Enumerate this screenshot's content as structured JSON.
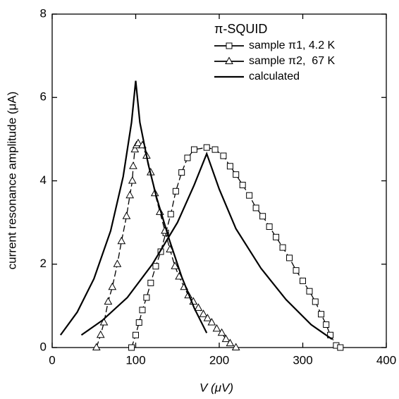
{
  "chart_data": {
    "type": "line",
    "legend_title": "π-SQUID",
    "x_label": "V (μV)",
    "y_label": "current resonance amplitude (μA)",
    "xlim": [
      0,
      400
    ],
    "xticks": [
      0,
      100,
      200,
      300,
      400
    ],
    "ylim": [
      0,
      8
    ],
    "yticks": [
      0,
      2,
      4,
      6,
      8
    ],
    "legend": "upper right",
    "series": [
      {
        "name": "sample π1, 4.2 K",
        "color": "#000000",
        "marker": "square",
        "x": [
          95,
          100,
          104,
          108,
          113,
          118,
          124,
          130,
          136,
          142,
          148,
          155,
          162,
          170,
          185,
          195,
          205,
          213,
          220,
          228,
          236,
          244,
          252,
          260,
          268,
          276,
          284,
          292,
          300,
          308,
          315,
          322,
          328,
          333,
          340,
          345
        ],
        "values": [
          0,
          0.3,
          0.6,
          0.9,
          1.2,
          1.55,
          1.95,
          2.3,
          2.75,
          3.2,
          3.75,
          4.2,
          4.55,
          4.75,
          4.8,
          4.75,
          4.6,
          4.35,
          4.15,
          3.9,
          3.65,
          3.35,
          3.15,
          2.9,
          2.65,
          2.4,
          2.15,
          1.85,
          1.6,
          1.35,
          1.1,
          0.8,
          0.55,
          0.3,
          0.05,
          0
        ]
      },
      {
        "name": "sample π2,  67 K",
        "color": "#000000",
        "marker": "triangle",
        "x": [
          53,
          58,
          62,
          67,
          72,
          78,
          83,
          89,
          93,
          96,
          97,
          99,
          101,
          103,
          108,
          113,
          118,
          123,
          129,
          135,
          141,
          147,
          152,
          158,
          163,
          169,
          175,
          181,
          186,
          191,
          197,
          203,
          208,
          213,
          220
        ],
        "values": [
          0,
          0.3,
          0.6,
          1.1,
          1.45,
          2.0,
          2.55,
          3.15,
          3.65,
          4.0,
          4.35,
          4.75,
          4.85,
          4.9,
          4.85,
          4.6,
          4.2,
          3.7,
          3.25,
          2.8,
          2.35,
          1.95,
          1.7,
          1.45,
          1.25,
          1.1,
          0.95,
          0.8,
          0.7,
          0.6,
          0.45,
          0.35,
          0.2,
          0.1,
          0
        ]
      },
      {
        "name": "calculated",
        "color": "#000000",
        "marker": "none",
        "x": [
          10,
          30,
          50,
          70,
          85,
          95,
          100,
          105,
          115,
          125,
          140,
          155,
          170,
          185,
          null,
          35,
          60,
          90,
          120,
          150,
          170,
          185,
          200,
          220,
          250,
          280,
          310,
          335
        ],
        "values": [
          0.3,
          0.85,
          1.65,
          2.8,
          4.1,
          5.4,
          6.4,
          5.4,
          4.4,
          3.6,
          2.6,
          1.7,
          0.95,
          0.35,
          null,
          0.3,
          0.65,
          1.2,
          2.0,
          3.0,
          3.9,
          4.65,
          3.8,
          2.85,
          1.9,
          1.15,
          0.55,
          0.2
        ]
      }
    ]
  }
}
